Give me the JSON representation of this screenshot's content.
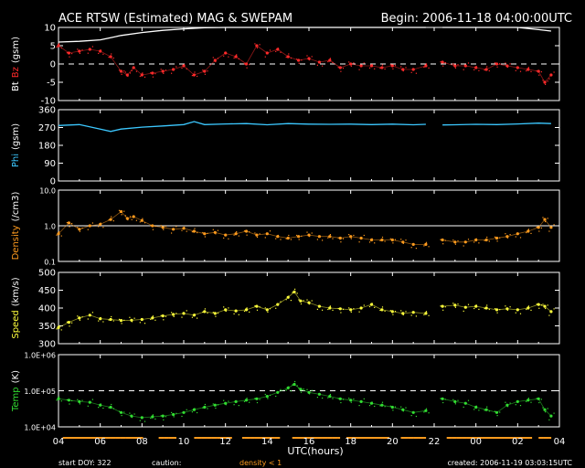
{
  "header": {
    "title": "ACE RTSW (Estimated) MAG & SWEPAM",
    "begin": "Begin: 2006-11-18 04:00:00UTC"
  },
  "footer": {
    "start_doy": "start DOY: 322",
    "caution": "caution:",
    "density_note": "density < 1",
    "created": "created: 2006-11-19 03:03:15UTC"
  },
  "xaxis": {
    "label": "UTC(hours)",
    "ticks": [
      "04",
      "06",
      "08",
      "10",
      "12",
      "14",
      "16",
      "18",
      "20",
      "22",
      "00",
      "02",
      "04"
    ]
  },
  "colors": {
    "background": "#000000",
    "frame": "#ffffff",
    "bt": "#ffffff",
    "bz": "#ff2a2a",
    "phi": "#3cc8ff",
    "density": "#ff9b1e",
    "speed": "#ffff3c",
    "temp": "#32dc32",
    "caution": "#ff9b1e"
  },
  "chart_data": {
    "type": "line",
    "x_range_hours": [
      4,
      28
    ],
    "data_gap_hours": [
      21.7,
      22.35
    ],
    "caution_intervals_hours": [
      [
        4.2,
        8.0
      ],
      [
        8.8,
        9.6
      ],
      [
        10.5,
        12.2
      ],
      [
        12.8,
        14.5
      ],
      [
        15.2,
        17.4
      ],
      [
        17.8,
        19.8
      ],
      [
        20.4,
        21.5
      ],
      [
        22.6,
        26.6
      ],
      [
        27.0,
        27.6
      ]
    ],
    "panels": [
      {
        "id": "mag",
        "ylabel": [
          "Bt",
          "Bz",
          "(gsm)"
        ],
        "scale": "linear",
        "ylim": [
          -10,
          10
        ],
        "ticks": [
          10,
          5,
          0,
          -5,
          -10
        ],
        "reference_lines": [
          0
        ],
        "series": [
          {
            "name": "Bt",
            "color_key": "bt",
            "style": "line",
            "x": [
              4,
              5,
              6,
              6.5,
              7,
              8,
              9,
              10,
              11,
              12,
              13,
              14,
              15,
              16,
              17,
              18,
              19,
              20,
              21,
              21.6,
              22.4,
              23,
              24,
              25,
              26,
              27,
              27.6
            ],
            "y": [
              6,
              6.2,
              6.6,
              7.2,
              7.8,
              8.6,
              9.2,
              9.6,
              9.9,
              10,
              10,
              10,
              10,
              10,
              10,
              10,
              10,
              10,
              10,
              10,
              10,
              10,
              10,
              10,
              10,
              9.4,
              9
            ]
          },
          {
            "name": "Bz",
            "color_key": "bz",
            "style": "dots",
            "x": [
              4,
              4.5,
              5,
              5.5,
              6,
              6.5,
              7,
              7.3,
              7.6,
              8,
              8.5,
              9,
              9.5,
              10,
              10.5,
              11,
              11.5,
              12,
              12.5,
              13,
              13.5,
              14,
              14.5,
              15,
              15.5,
              16,
              16.5,
              17,
              17.5,
              18,
              18.5,
              19,
              19.5,
              20,
              20.5,
              21,
              21.6,
              22.4,
              23,
              23.5,
              24,
              24.5,
              25,
              25.5,
              26,
              26.5,
              27,
              27.3,
              27.6
            ],
            "y": [
              5,
              3,
              3.5,
              4,
              3.5,
              2,
              -2,
              -3,
              -1,
              -3,
              -2.5,
              -2,
              -1.5,
              -0.5,
              -3,
              -2,
              1,
              3,
              2,
              0,
              5,
              3,
              4,
              2,
              1,
              1.5,
              0.5,
              1,
              -1,
              0,
              -0.5,
              -0.5,
              -1,
              -0.5,
              -1.5,
              -1.5,
              -0.5,
              0.5,
              -0.5,
              -0.5,
              -1,
              -1.5,
              0,
              -0.5,
              -1,
              -1.5,
              -2,
              -5,
              -3
            ]
          }
        ]
      },
      {
        "id": "phi",
        "ylabel": [
          "Phi",
          "(gsm)"
        ],
        "scale": "linear",
        "ylim": [
          0,
          360
        ],
        "ticks": [
          360,
          270,
          180,
          90,
          0
        ],
        "series": [
          {
            "name": "Phi",
            "color_key": "phi",
            "style": "line",
            "x": [
              4,
              5,
              6,
              6.5,
              7,
              8,
              9,
              10,
              10.5,
              11,
              12,
              13,
              14,
              15,
              16,
              17,
              18,
              19,
              20,
              21,
              21.6,
              22.4,
              23,
              24,
              25,
              26,
              27,
              27.6
            ],
            "y": [
              280,
              285,
              262,
              250,
              262,
              272,
              278,
              285,
              300,
              285,
              288,
              290,
              284,
              290,
              287,
              286,
              287,
              285,
              287,
              284,
              286,
              283,
              284,
              286,
              285,
              288,
              292,
              290
            ]
          }
        ]
      },
      {
        "id": "density",
        "ylabel": [
          "Density",
          "(/cm3)"
        ],
        "scale": "log",
        "ylim": [
          0.1,
          10
        ],
        "ticks": [
          "10.0",
          "1.0",
          "0.1"
        ],
        "tick_values": [
          10,
          1,
          0.1
        ],
        "reference_lines": [
          1
        ],
        "series": [
          {
            "name": "Density",
            "color_key": "density",
            "style": "dots",
            "x": [
              4,
              4.5,
              5,
              5.5,
              6,
              6.5,
              7,
              7.3,
              7.6,
              8,
              8.5,
              9,
              9.5,
              10,
              10.5,
              11,
              11.5,
              12,
              12.5,
              13,
              13.5,
              14,
              14.5,
              15,
              15.5,
              16,
              16.5,
              17,
              17.5,
              18,
              18.5,
              19,
              19.5,
              20,
              20.5,
              21,
              21.6,
              22.4,
              23,
              23.5,
              24,
              24.5,
              25,
              25.5,
              26,
              26.5,
              27,
              27.3,
              27.6
            ],
            "y": [
              0.6,
              1.2,
              0.8,
              1.0,
              1.1,
              1.5,
              2.5,
              1.6,
              1.8,
              1.4,
              1.0,
              0.9,
              0.8,
              0.85,
              0.7,
              0.6,
              0.65,
              0.55,
              0.6,
              0.7,
              0.55,
              0.6,
              0.5,
              0.45,
              0.5,
              0.55,
              0.5,
              0.5,
              0.45,
              0.5,
              0.45,
              0.4,
              0.4,
              0.4,
              0.35,
              0.3,
              0.3,
              0.4,
              0.35,
              0.35,
              0.4,
              0.4,
              0.45,
              0.5,
              0.6,
              0.7,
              0.9,
              1.5,
              0.9
            ]
          }
        ]
      },
      {
        "id": "speed",
        "ylabel": [
          "Speed",
          "(km/s)"
        ],
        "scale": "linear",
        "ylim": [
          300,
          500
        ],
        "ticks": [
          500,
          450,
          400,
          350,
          300
        ],
        "series": [
          {
            "name": "Speed",
            "color_key": "speed",
            "style": "dots",
            "x": [
              4,
              4.5,
              5,
              5.5,
              6,
              6.5,
              7,
              7.5,
              8,
              8.5,
              9,
              9.5,
              10,
              10.5,
              11,
              11.5,
              12,
              12.5,
              13,
              13.5,
              14,
              14.5,
              15,
              15.3,
              15.6,
              16,
              16.5,
              17,
              17.5,
              18,
              18.5,
              19,
              19.5,
              20,
              20.5,
              21,
              21.6,
              22.4,
              23,
              23.5,
              24,
              24.5,
              25,
              25.5,
              26,
              26.5,
              27,
              27.3,
              27.6
            ],
            "y": [
              345,
              360,
              372,
              380,
              370,
              368,
              365,
              366,
              368,
              372,
              378,
              382,
              385,
              380,
              390,
              385,
              395,
              392,
              395,
              405,
              395,
              410,
              430,
              445,
              420,
              415,
              405,
              400,
              398,
              395,
              400,
              410,
              395,
              390,
              385,
              388,
              385,
              405,
              408,
              402,
              405,
              400,
              395,
              398,
              395,
              400,
              410,
              405,
              390
            ]
          }
        ]
      },
      {
        "id": "temp",
        "ylabel": [
          "Temp",
          "(K)"
        ],
        "scale": "log",
        "ylim": [
          10000,
          1000000
        ],
        "ticks": [
          "1.0E+06",
          "1.0E+05",
          "1.0E+04"
        ],
        "tick_values": [
          1000000,
          100000,
          10000
        ],
        "reference_lines": [
          100000
        ],
        "series": [
          {
            "name": "Temp",
            "color_key": "temp",
            "style": "dots",
            "x": [
              4,
              4.5,
              5,
              5.5,
              6,
              6.5,
              7,
              7.5,
              8,
              8.5,
              9,
              9.5,
              10,
              10.5,
              11,
              11.5,
              12,
              12.5,
              13,
              13.5,
              14,
              14.5,
              15,
              15.3,
              15.6,
              16,
              16.5,
              17,
              17.5,
              18,
              18.5,
              19,
              19.5,
              20,
              20.5,
              21,
              21.6,
              22.4,
              23,
              23.5,
              24,
              24.5,
              25,
              25.5,
              26,
              26.5,
              27,
              27.3,
              27.6
            ],
            "y": [
              60000,
              55000,
              50000,
              48000,
              40000,
              35000,
              25000,
              20000,
              18000,
              19000,
              20000,
              22000,
              25000,
              30000,
              35000,
              40000,
              45000,
              50000,
              55000,
              60000,
              70000,
              90000,
              120000,
              150000,
              110000,
              90000,
              80000,
              70000,
              60000,
              55000,
              50000,
              45000,
              40000,
              35000,
              30000,
              25000,
              28000,
              60000,
              50000,
              45000,
              35000,
              30000,
              25000,
              40000,
              50000,
              55000,
              60000,
              30000,
              20000
            ]
          }
        ]
      }
    ]
  }
}
